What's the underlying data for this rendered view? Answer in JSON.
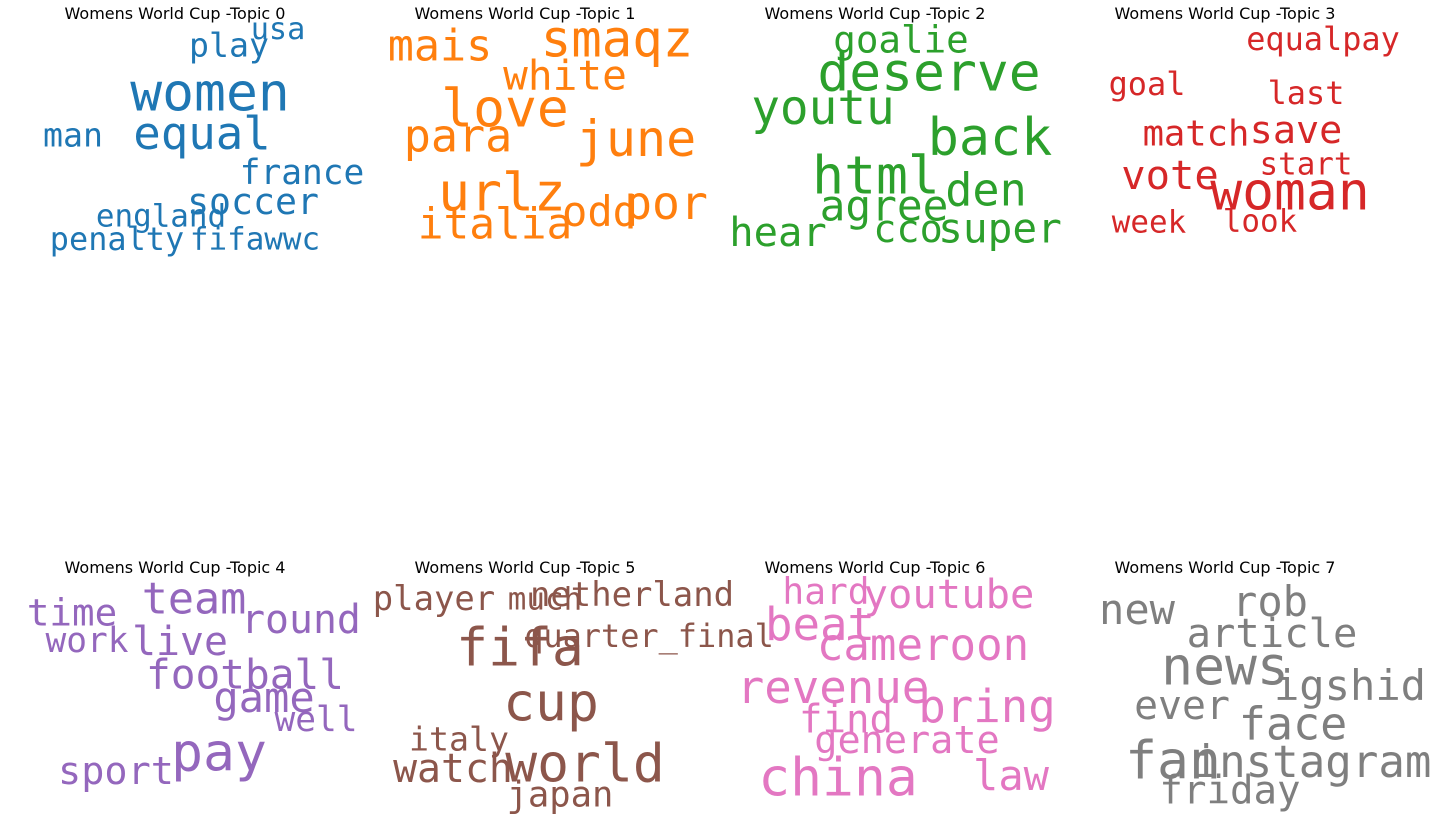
{
  "chart_data": [
    {
      "type": "wordcloud",
      "title": "Womens World Cup -Topic 0",
      "color": "#1f77b4",
      "words": [
        {
          "text": "women",
          "weight": 1.0
        },
        {
          "text": "equal",
          "weight": 0.78
        },
        {
          "text": "france",
          "weight": 0.44
        },
        {
          "text": "soccer",
          "weight": 0.5
        },
        {
          "text": "play",
          "weight": 0.4
        },
        {
          "text": "man",
          "weight": 0.4
        },
        {
          "text": "usa",
          "weight": 0.31
        },
        {
          "text": "england",
          "weight": 0.33
        },
        {
          "text": "penalty",
          "weight": 0.36
        },
        {
          "text": "fifawwc",
          "weight": 0.33
        }
      ]
    },
    {
      "type": "wordcloud",
      "title": "Womens World Cup -Topic 1",
      "color": "#ff7f0e",
      "words": [
        {
          "text": "smaqz",
          "weight": 0.93
        },
        {
          "text": "mais",
          "weight": 0.71
        },
        {
          "text": "white",
          "weight": 0.64
        },
        {
          "text": "love",
          "weight": 1.0
        },
        {
          "text": "para",
          "weight": 0.76
        },
        {
          "text": "june",
          "weight": 0.91
        },
        {
          "text": "urlz",
          "weight": 1.0
        },
        {
          "text": "por",
          "weight": 0.8
        },
        {
          "text": "odd",
          "weight": 0.67
        },
        {
          "text": "italia",
          "weight": 0.69
        }
      ]
    },
    {
      "type": "wordcloud",
      "title": "Womens World Cup -Topic 2",
      "color": "#2ca02c",
      "words": [
        {
          "text": "goalie",
          "weight": 0.53
        },
        {
          "text": "deserve",
          "weight": 1.0
        },
        {
          "text": "youtu",
          "weight": 0.84
        },
        {
          "text": "back",
          "weight": 0.96
        },
        {
          "text": "html",
          "weight": 1.0
        },
        {
          "text": "den",
          "weight": 0.76
        },
        {
          "text": "agree",
          "weight": 0.69
        },
        {
          "text": "hear",
          "weight": 0.62
        },
        {
          "text": "cco",
          "weight": 0.56
        },
        {
          "text": "super",
          "weight": 0.64
        }
      ]
    },
    {
      "type": "wordcloud",
      "title": "Womens World Cup -Topic 3",
      "color": "#d62728",
      "words": [
        {
          "text": "equalpay",
          "weight": 0.36
        },
        {
          "text": "goal",
          "weight": 0.36
        },
        {
          "text": "last",
          "weight": 0.36
        },
        {
          "text": "match",
          "weight": 0.47
        },
        {
          "text": "save",
          "weight": 0.56
        },
        {
          "text": "start",
          "weight": 0.33
        },
        {
          "text": "vote",
          "weight": 0.62
        },
        {
          "text": "woman",
          "weight": 1.0
        },
        {
          "text": "week",
          "weight": 0.33
        },
        {
          "text": "look",
          "weight": 0.33
        }
      ]
    },
    {
      "type": "wordcloud",
      "title": "Womens World Cup -Topic 4",
      "color": "#9467bd",
      "words": [
        {
          "text": "team",
          "weight": 0.71
        },
        {
          "text": "time",
          "weight": 0.53
        },
        {
          "text": "round",
          "weight": 0.6
        },
        {
          "text": "work",
          "weight": 0.44
        },
        {
          "text": "live",
          "weight": 0.6
        },
        {
          "text": "football",
          "weight": 0.64
        },
        {
          "text": "game",
          "weight": 0.67
        },
        {
          "text": "well",
          "weight": 0.44
        },
        {
          "text": "pay",
          "weight": 1.0
        },
        {
          "text": "sport",
          "weight": 0.56
        }
      ]
    },
    {
      "type": "wordcloud",
      "title": "Womens World Cup -Topic 5",
      "color": "#8c564b",
      "words": [
        {
          "text": "player",
          "weight": 0.42
        },
        {
          "text": "much",
          "weight": 0.33
        },
        {
          "text": "netherland",
          "weight": 0.42
        },
        {
          "text": "fifa",
          "weight": 1.0
        },
        {
          "text": "quarter_final",
          "weight": 0.36
        },
        {
          "text": "cup",
          "weight": 1.0
        },
        {
          "text": "italy",
          "weight": 0.4
        },
        {
          "text": "watch",
          "weight": 0.6
        },
        {
          "text": "world",
          "weight": 1.0
        },
        {
          "text": "japan",
          "weight": 0.47
        }
      ]
    },
    {
      "type": "wordcloud",
      "title": "Womens World Cup -Topic 6",
      "color": "#e377c2",
      "words": [
        {
          "text": "hard",
          "weight": 0.49
        },
        {
          "text": "youtube",
          "weight": 0.62
        },
        {
          "text": "beat",
          "weight": 0.78
        },
        {
          "text": "cameroon",
          "weight": 0.73
        },
        {
          "text": "revenue",
          "weight": 0.78
        },
        {
          "text": "bring",
          "weight": 0.78
        },
        {
          "text": "find",
          "weight": 0.58
        },
        {
          "text": "generate",
          "weight": 0.56
        },
        {
          "text": "china",
          "weight": 1.0
        },
        {
          "text": "law",
          "weight": 0.67
        }
      ]
    },
    {
      "type": "wordcloud",
      "title": "Womens World Cup -Topic 7",
      "color": "#7f7f7f",
      "words": [
        {
          "text": "new",
          "weight": 0.67
        },
        {
          "text": "rob",
          "weight": 0.67
        },
        {
          "text": "article",
          "weight": 0.62
        },
        {
          "text": "news",
          "weight": 1.0
        },
        {
          "text": "igshid",
          "weight": 0.67
        },
        {
          "text": "ever",
          "weight": 0.6
        },
        {
          "text": "face",
          "weight": 0.76
        },
        {
          "text": "fan",
          "weight": 1.0
        },
        {
          "text": "instagram",
          "weight": 0.73
        },
        {
          "text": "friday",
          "weight": 0.58
        }
      ]
    }
  ]
}
